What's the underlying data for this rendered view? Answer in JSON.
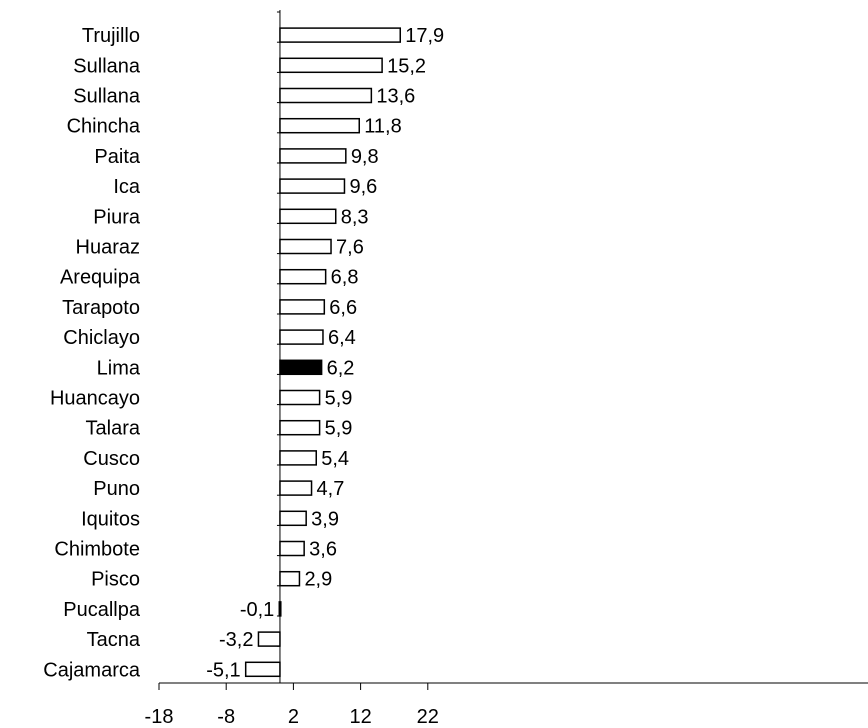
{
  "chart_data": {
    "type": "bar",
    "orientation": "horizontal",
    "categories": [
      "Trujillo",
      "Sullana",
      "Sullana",
      "Chincha",
      "Paita",
      "Ica",
      "Piura",
      "Huaraz",
      "Arequipa",
      "Tarapoto",
      "Chiclayo",
      "Lima",
      "Huancayo",
      "Talara",
      "Cusco",
      "Puno",
      "Iquitos",
      "Chimbote",
      "Pisco",
      "Pucallpa",
      "Tacna",
      "Cajamarca"
    ],
    "values": [
      17.9,
      15.2,
      13.6,
      11.8,
      9.8,
      9.6,
      8.3,
      7.6,
      6.8,
      6.6,
      6.4,
      6.2,
      5.9,
      5.9,
      5.4,
      4.7,
      3.9,
      3.6,
      2.9,
      -0.1,
      -3.2,
      -5.1
    ],
    "value_labels": [
      "17,9",
      "15,2",
      "13,6",
      "11,8",
      "9,8",
      "9,6",
      "8,3",
      "7,6",
      "6,8",
      "6,6",
      "6,4",
      "6,2",
      "5,9",
      "5,9",
      "5,4",
      "4,7",
      "3,9",
      "3,6",
      "2,9",
      "-0,1",
      "-3,2",
      "-5,1"
    ],
    "highlight": "Lima",
    "bar_color": "#ffffff",
    "highlight_color": "#000000",
    "xlim": [
      -18,
      24
    ],
    "xticks": [
      -18,
      -8,
      2,
      12,
      22
    ],
    "xtick_labels": [
      "-18",
      "-8",
      "2",
      "12",
      "22"
    ],
    "grid": false,
    "legend": false
  }
}
